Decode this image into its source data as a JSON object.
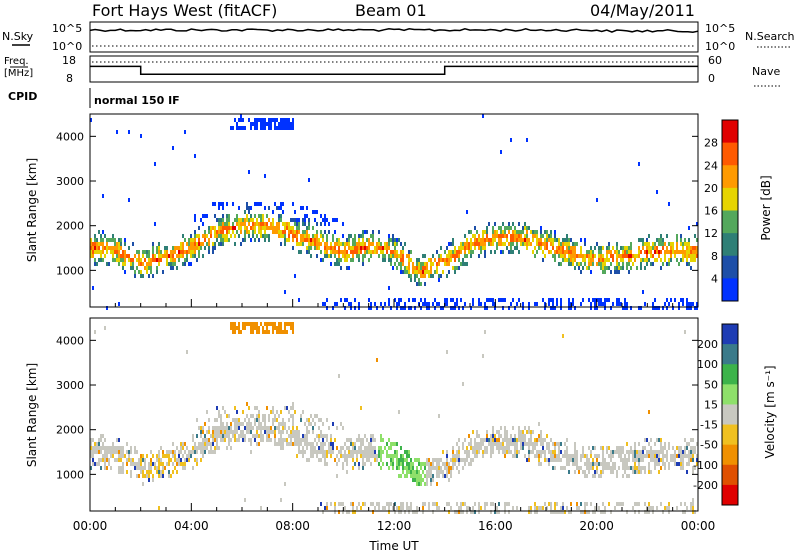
{
  "header": {
    "station": "Fort Hays West (fitACF)",
    "beam": "Beam 01",
    "date": "04/May/2011"
  },
  "top_panels": {
    "nsky_label": "N.Sky",
    "nsearch_label": "N.Search",
    "freq_label_1": "Freq.",
    "freq_label_2": "[MHz]",
    "nave_label": "Nave",
    "cpid_label": "CPID",
    "cpid_value": "normal 150 IF",
    "noise_ticks": [
      "10^5",
      "10^0"
    ],
    "noise_right_ticks": [
      "10^5",
      "10^0"
    ],
    "freq_ticks": [
      "18",
      "8"
    ],
    "nave_ticks": [
      "60",
      "0"
    ]
  },
  "chart_data": [
    {
      "type": "line",
      "name": "noise",
      "series": [
        {
          "name": "N.Sky",
          "description": "nearly flat near 10^5"
        },
        {
          "name": "N.Search",
          "description": "flat near 10^0 (dotted)"
        }
      ]
    },
    {
      "type": "line",
      "name": "frequency-nave",
      "x": [
        0,
        2,
        2,
        14,
        14,
        24
      ],
      "series": [
        {
          "name": "Freq.",
          "values": [
            14,
            14,
            11,
            11,
            14,
            14
          ]
        },
        {
          "name": "Nave",
          "values": [
            40,
            40,
            40,
            40,
            40,
            40
          ]
        }
      ],
      "ylim_freq": [
        8,
        18
      ],
      "ylim_nave": [
        0,
        60
      ]
    },
    {
      "type": "heatmap",
      "name": "power",
      "xlabel": "Time UT",
      "ylabel": "Slant Range [km]",
      "x_ticks": [
        "00:00",
        "04:00",
        "08:00",
        "12:00",
        "16:00",
        "20:00",
        "00:00"
      ],
      "xlim": [
        0,
        24
      ],
      "ylim": [
        180,
        4500
      ],
      "y_ticks": [
        1000,
        2000,
        3000,
        4000
      ],
      "colorbar_label": "Power [dB]",
      "colorbar_ticks": [
        4,
        8,
        12,
        16,
        20,
        24,
        28
      ],
      "colorbar_colors": [
        "#0032ff",
        "#1d4fa8",
        "#2f7f76",
        "#54a85c",
        "#e6d400",
        "#ff9a00",
        "#ff5a00",
        "#e00000"
      ],
      "band_center_km": [
        [
          0,
          1550
        ],
        [
          1,
          1500
        ],
        [
          2,
          1200
        ],
        [
          3,
          1350
        ],
        [
          4,
          1550
        ],
        [
          5,
          1900
        ],
        [
          6,
          2050
        ],
        [
          7,
          2050
        ],
        [
          8,
          1850
        ],
        [
          9,
          1650
        ],
        [
          10,
          1450
        ],
        [
          11,
          1600
        ],
        [
          12,
          1450
        ],
        [
          13,
          1000
        ],
        [
          14,
          1250
        ],
        [
          15,
          1600
        ],
        [
          16,
          1800
        ],
        [
          17,
          1750
        ],
        [
          18,
          1600
        ],
        [
          19,
          1400
        ],
        [
          20,
          1300
        ],
        [
          21,
          1350
        ],
        [
          22,
          1450
        ],
        [
          23,
          1500
        ],
        [
          24,
          1450
        ]
      ]
    },
    {
      "type": "heatmap",
      "name": "velocity",
      "xlabel": "Time UT",
      "ylabel": "Slant Range [km]",
      "x_ticks": [
        "00:00",
        "04:00",
        "08:00",
        "12:00",
        "16:00",
        "20:00",
        "00:00"
      ],
      "xlim": [
        0,
        24
      ],
      "ylim": [
        180,
        4500
      ],
      "y_ticks": [
        1000,
        2000,
        3000,
        4000
      ],
      "colorbar_label": "Velocity [m s⁻¹]",
      "colorbar_ticks": [
        200,
        100,
        50,
        15,
        -15,
        -50,
        -100,
        -200
      ],
      "colorbar_colors": [
        "#1e3cb4",
        "#3a7a8a",
        "#3cb34a",
        "#8ee06a",
        "#c8c8c0",
        "#f0c020",
        "#f09000",
        "#e05000",
        "#e00000"
      ]
    }
  ]
}
